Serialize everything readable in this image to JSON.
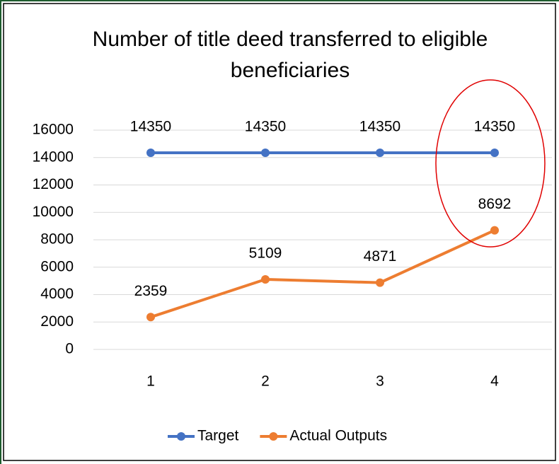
{
  "chart_data": {
    "type": "line",
    "title": "Number of title deed transferred to eligible beneficiaries",
    "categories": [
      "1",
      "2",
      "3",
      "4"
    ],
    "series": [
      {
        "name": "Target",
        "color": "#4472c4",
        "values": [
          14350,
          14350,
          14350,
          14350
        ]
      },
      {
        "name": "Actual Outputs",
        "color": "#ed7d31",
        "values": [
          2359,
          5109,
          4871,
          8692
        ]
      }
    ],
    "ylim": [
      0,
      16000
    ],
    "yticks": [
      0,
      2000,
      4000,
      6000,
      8000,
      10000,
      12000,
      14000,
      16000
    ],
    "grid": true,
    "legend": "bottom"
  }
}
